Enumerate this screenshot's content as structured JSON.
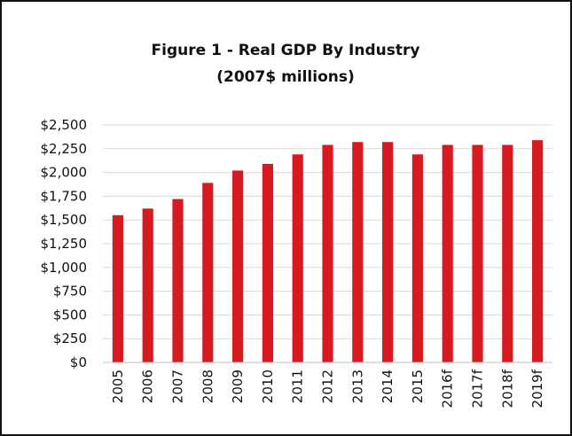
{
  "chart_data": {
    "type": "bar",
    "title": "Figure 1 - Real GDP By Industry",
    "subtitle": "(2007$ millions)",
    "xlabel": "",
    "ylabel": "",
    "categories": [
      "2005",
      "2006",
      "2007",
      "2008",
      "2009",
      "2010",
      "2011",
      "2012",
      "2013",
      "2014",
      "2015",
      "2016f",
      "2017f",
      "2018f",
      "2019f"
    ],
    "values": [
      1550,
      1620,
      1720,
      1890,
      2020,
      2090,
      2190,
      2290,
      2320,
      2320,
      2190,
      2290,
      2290,
      2290,
      2340
    ],
    "ylim": [
      0,
      2500
    ],
    "yticks": [
      0,
      250,
      500,
      750,
      1000,
      1250,
      1500,
      1750,
      2000,
      2250,
      2500
    ],
    "ytick_labels": [
      "$0",
      "$250",
      "$500",
      "$750",
      "$1,000",
      "$1,250",
      "$1,500",
      "$1,750",
      "$2,000",
      "$2,250",
      "$2,500"
    ],
    "grid": true,
    "legend": "none",
    "colors": {
      "bar": "#d71920",
      "grid": "#d9d9d9",
      "axis": "#bfbfbf",
      "text": "#111111",
      "border": "#111111"
    }
  }
}
